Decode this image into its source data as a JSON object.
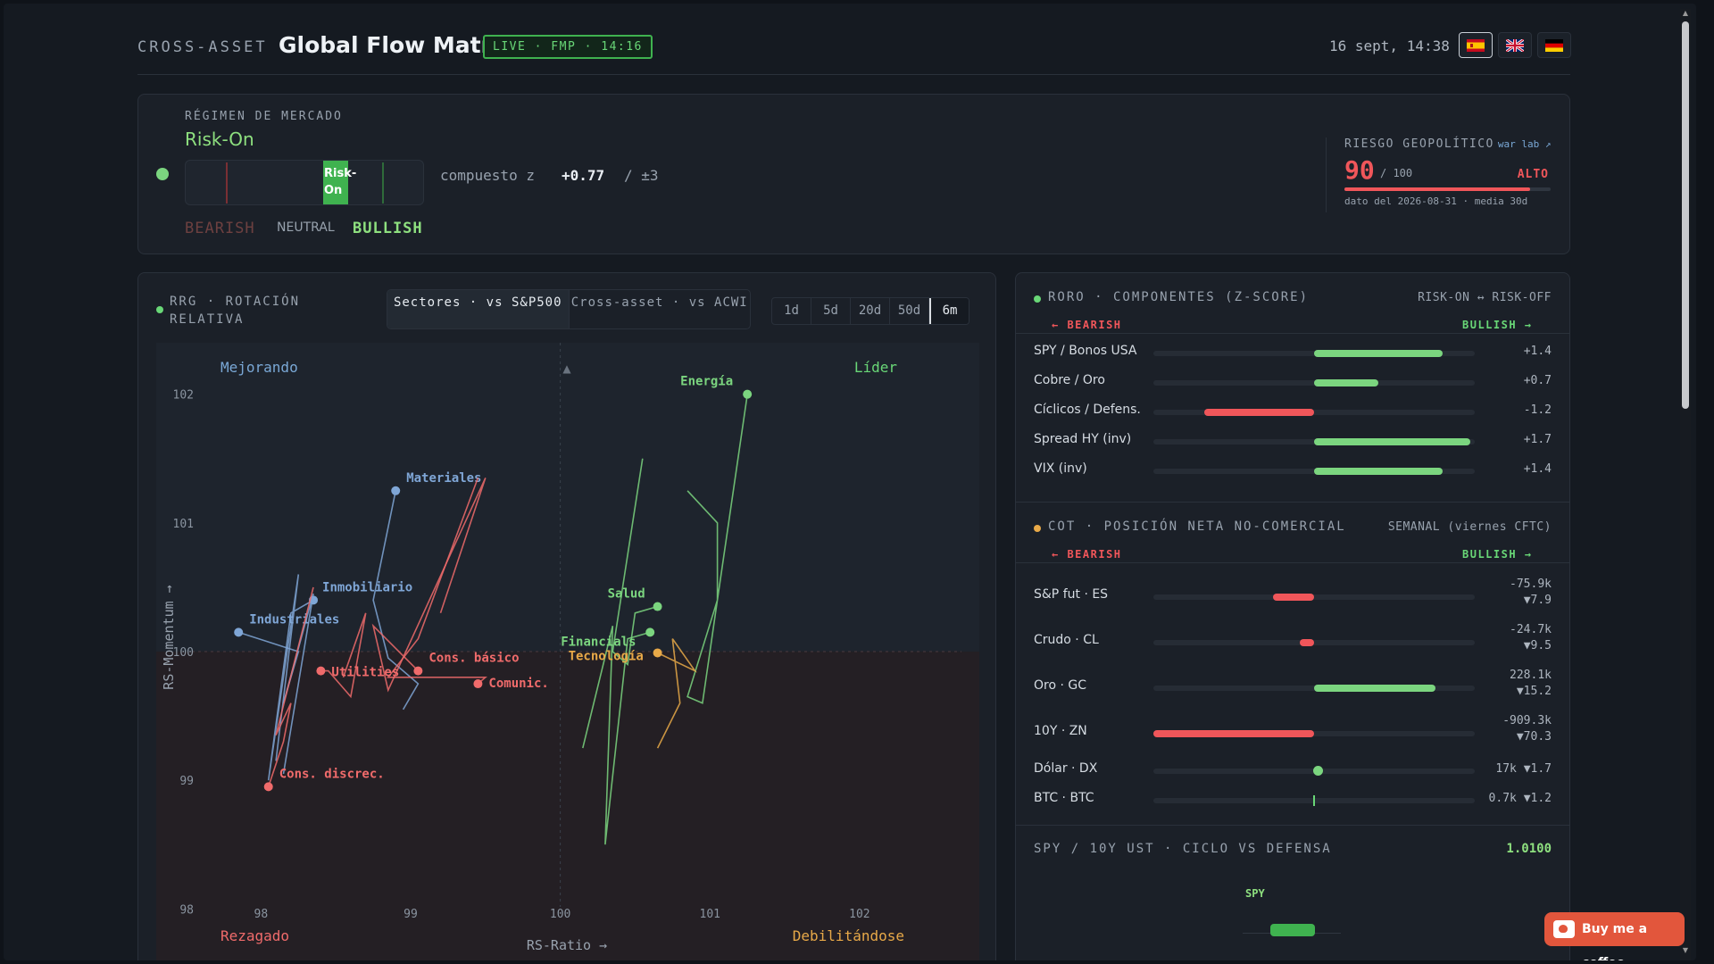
{
  "header": {
    "brand": "CROSS-ASSET",
    "title": "Global Flow Matrix",
    "live_badge": "LIVE · FMP · 14:16",
    "datetime": "16 sept, 14:38",
    "languages": [
      {
        "code": "es",
        "icon": "flag-spain-icon",
        "active": true
      },
      {
        "code": "en",
        "icon": "flag-uk-icon",
        "active": false
      },
      {
        "code": "de",
        "icon": "flag-germany-icon",
        "active": false
      }
    ]
  },
  "regime": {
    "label": "RÉGIMEN DE MERCADO",
    "value": "Risk-On",
    "marker_label": "Risk-On",
    "composite_label": "compuesto z",
    "composite_value": "+0.77",
    "composite_range": "/ ±3",
    "bearish": "BEARISH",
    "neutral": "NEUTRAL",
    "bullish": "BULLISH",
    "colors": {
      "bull": "#8ee07f",
      "bear": "#f0565a"
    }
  },
  "geo": {
    "label": "RIESGO GEOPOLÍTICO",
    "link": "war lab ↗",
    "score": "90",
    "max": "/ 100",
    "level": "ALTO",
    "fill": 0.9,
    "meta": "dato del 2026-08-31 · media 30d"
  },
  "rrg": {
    "title": "RRG · ROTACIÓN RELATIVA",
    "tabs": [
      "Sectores · vs S&P500",
      "Cross-asset · vs ACWI"
    ],
    "timeframes": [
      "1d",
      "5d",
      "20d",
      "50d",
      "6m"
    ],
    "active_timeframe": "6m",
    "quadrants": {
      "improving": "Mejorando",
      "leading": "Líder",
      "lagging": "Rezagado",
      "weakening": "Debilitándose"
    },
    "up_arrow": "▲"
  },
  "chart_data": {
    "type": "scatter",
    "xlabel": "RS-Ratio →",
    "ylabel": "RS-Momentum →",
    "xlim": [
      97.3,
      102.8
    ],
    "ylim": [
      97.6,
      102.4
    ],
    "x_ticks": [
      "98",
      "99",
      "100",
      "101",
      "102"
    ],
    "y_ticks": [
      "98",
      "99",
      "100",
      "101",
      "102"
    ],
    "series": [
      {
        "name": "Energía",
        "color": "#7bd57f",
        "points": [
          [
            100.85,
            101.25
          ],
          [
            101.05,
            101.0
          ],
          [
            101.05,
            100.4
          ],
          [
            100.85,
            99.65
          ],
          [
            100.95,
            99.6
          ],
          [
            101.05,
            100.4
          ],
          [
            101.25,
            102.0
          ]
        ]
      },
      {
        "name": "Materiales",
        "color": "#7fa6d6",
        "points": [
          [
            98.95,
            99.55
          ],
          [
            99.05,
            99.75
          ],
          [
            98.85,
            99.95
          ],
          [
            98.75,
            100.4
          ],
          [
            98.9,
            101.25
          ]
        ]
      },
      {
        "name": "Inmobiliario",
        "color": "#7fa6d6",
        "points": [
          [
            98.1,
            99.15
          ],
          [
            98.25,
            100.6
          ],
          [
            98.05,
            99.0
          ],
          [
            98.2,
            100.3
          ],
          [
            98.35,
            100.4
          ]
        ]
      },
      {
        "name": "Industriales",
        "color": "#7fa6d6",
        "points": [
          [
            98.15,
            99.05
          ],
          [
            98.35,
            100.45
          ],
          [
            98.15,
            99.6
          ],
          [
            98.25,
            100.0
          ],
          [
            97.85,
            100.15
          ]
        ]
      },
      {
        "name": "Utilities",
        "color": "#f06b6b",
        "points": [
          [
            98.55,
            99.8
          ],
          [
            98.7,
            100.3
          ],
          [
            98.6,
            99.65
          ],
          [
            98.45,
            99.85
          ],
          [
            98.4,
            99.85
          ]
        ]
      },
      {
        "name": "Cons. básico",
        "color": "#f06b6b",
        "points": [
          [
            99.2,
            100.3
          ],
          [
            99.5,
            101.35
          ],
          [
            98.85,
            99.7
          ],
          [
            98.75,
            100.2
          ],
          [
            99.05,
            99.85
          ]
        ]
      },
      {
        "name": "Comunic.",
        "color": "#f06b6b",
        "points": [
          [
            99.45,
            101.35
          ],
          [
            99.05,
            100.1
          ],
          [
            98.85,
            99.8
          ],
          [
            99.5,
            99.8
          ],
          [
            99.45,
            99.75
          ]
        ]
      },
      {
        "name": "Cons. discrec.",
        "color": "#f06b6b",
        "points": [
          [
            98.35,
            100.5
          ],
          [
            98.1,
            99.35
          ],
          [
            98.2,
            99.6
          ],
          [
            98.15,
            99.3
          ],
          [
            98.05,
            98.95
          ]
        ]
      },
      {
        "name": "Salud",
        "color": "#7bd57f",
        "points": [
          [
            100.55,
            101.5
          ],
          [
            100.35,
            100.0
          ],
          [
            100.45,
            99.9
          ],
          [
            100.5,
            100.3
          ],
          [
            100.65,
            100.35
          ]
        ]
      },
      {
        "name": "Financials",
        "color": "#7bd57f",
        "points": [
          [
            100.15,
            99.25
          ],
          [
            100.35,
            100.2
          ],
          [
            100.3,
            98.5
          ],
          [
            100.45,
            100.1
          ],
          [
            100.6,
            100.15
          ]
        ]
      },
      {
        "name": "Tecnología",
        "color": "#e8a948",
        "points": [
          [
            100.65,
            99.25
          ],
          [
            100.8,
            99.6
          ],
          [
            100.75,
            100.1
          ],
          [
            100.9,
            99.85
          ],
          [
            100.65,
            99.99
          ]
        ]
      }
    ]
  },
  "roro": {
    "title": "RORO · COMPONENTES (Z-SCORE)",
    "right": "RISK-ON ↔ RISK-OFF",
    "bearish": "← BEARISH",
    "bullish": "BULLISH →",
    "rows": [
      {
        "label": "SPY / Bonos USA",
        "value": 1.4,
        "display": "+1.4"
      },
      {
        "label": "Cobre / Oro",
        "value": 0.7,
        "display": "+0.7"
      },
      {
        "label": "Cíclicos / Defens.",
        "value": -1.2,
        "display": "-1.2"
      },
      {
        "label": "Spread HY (inv)",
        "value": 1.7,
        "display": "+1.7"
      },
      {
        "label": "VIX (inv)",
        "value": 1.4,
        "display": "+1.4"
      }
    ]
  },
  "cot": {
    "title": "COT · POSICIÓN NETA NO-COMERCIAL",
    "right": "SEMANAL (viernes CFTC)",
    "bearish": "← BEARISH",
    "bullish": "BULLISH →",
    "rows": [
      {
        "label": "S&P fut · ES",
        "value": "-75.9k",
        "change": "▼7.9"
      },
      {
        "label": "Crudo · CL",
        "value": "-24.7k",
        "change": "▼9.5"
      },
      {
        "label": "Oro · GC",
        "value": "228.1k",
        "change": "▼15.2"
      },
      {
        "label": "10Y · ZN",
        "value": "-909.3k",
        "change": "▼70.3"
      },
      {
        "label": "Dólar · DX",
        "value": "17k",
        "change": "▼1.7"
      },
      {
        "label": "BTC · BTC",
        "value": "0.7k",
        "change": "▼1.2"
      }
    ]
  },
  "spy_cycle": {
    "title": "SPY / 10Y UST · CICLO VS DEFENSA",
    "value": "1.0100",
    "bar_label": "SPY"
  },
  "coffee": {
    "label": "Buy me a coffee"
  }
}
